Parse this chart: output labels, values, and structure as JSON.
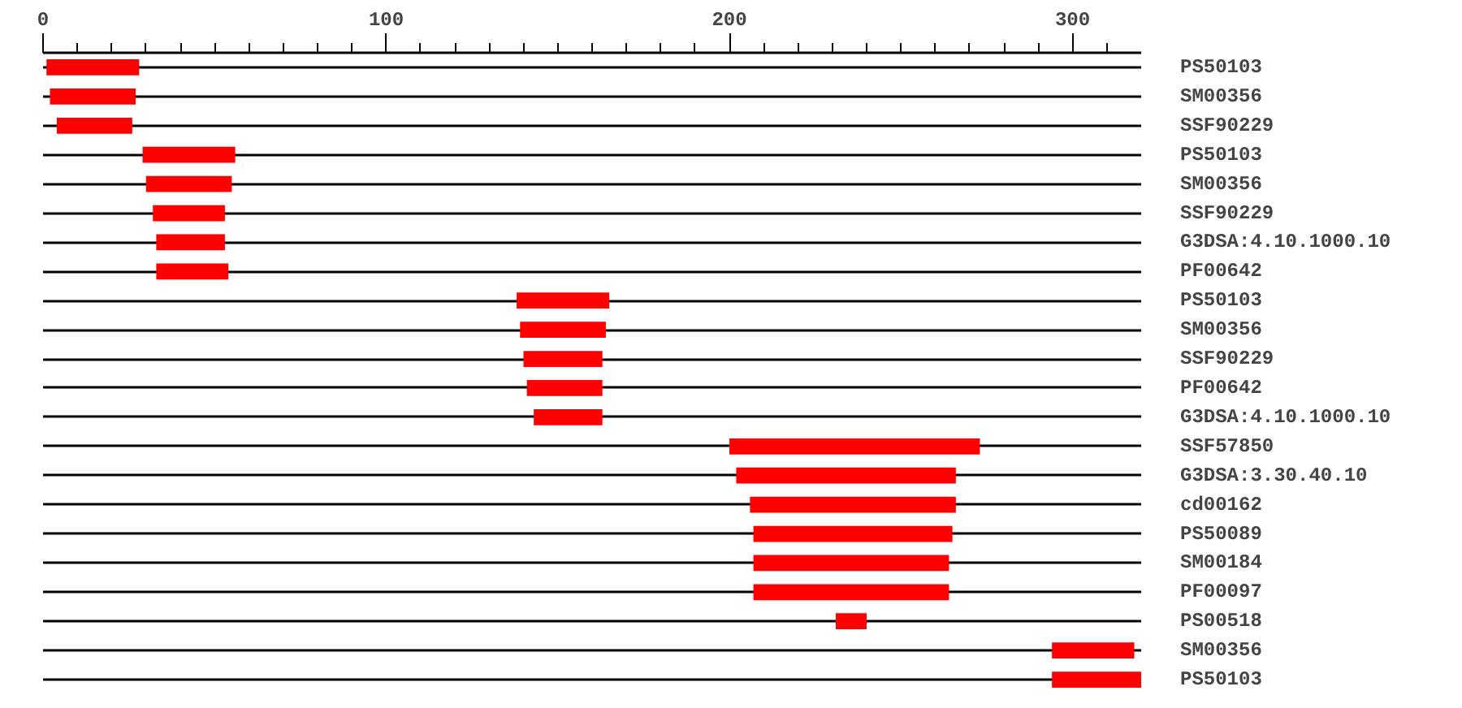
{
  "chart_data": {
    "type": "bar",
    "orientation": "horizontal",
    "grid": "y",
    "categories": [
      "PS50103",
      "SM00356",
      "SSF90229",
      "PS50103",
      "SM00356",
      "SSF90229",
      "G3DSA:4.10.1000.10",
      "PF00642",
      "PS50103",
      "SM00356",
      "SSF90229",
      "PF00642",
      "G3DSA:4.10.1000.10",
      "SSF57850",
      "G3DSA:3.30.40.10",
      "cd00162",
      "PS50089",
      "SM00184",
      "PF00097",
      "PS00518",
      "SM00356",
      "PS50103"
    ],
    "base": [
      1,
      2,
      4,
      29,
      30,
      32,
      33,
      33,
      138,
      139,
      140,
      141,
      143,
      200,
      202,
      206,
      207,
      207,
      207,
      231,
      294,
      294
    ],
    "values": [
      27,
      25,
      22,
      27,
      25,
      21,
      20,
      21,
      27,
      25,
      23,
      22,
      20,
      73,
      64,
      60,
      58,
      57,
      57,
      9,
      24,
      26
    ],
    "color": "#ff0000",
    "xlim": [
      0,
      320
    ],
    "xticks": [
      0,
      {
        "value": 10,
        "label": null
      },
      {
        "value": 20,
        "label": null
      },
      {
        "value": 30,
        "label": null
      },
      {
        "value": 40,
        "label": null
      },
      {
        "value": 50,
        "label": null
      },
      {
        "value": 60,
        "label": null
      },
      {
        "value": 70,
        "label": null
      },
      {
        "value": 80,
        "label": null
      },
      {
        "value": 90,
        "label": null
      },
      100,
      {
        "value": 110,
        "label": null
      },
      {
        "value": 120,
        "label": null
      },
      {
        "value": 130,
        "label": null
      },
      {
        "value": 140,
        "label": null
      },
      {
        "value": 150,
        "label": null
      },
      {
        "value": 160,
        "label": null
      },
      {
        "value": 170,
        "label": null
      },
      {
        "value": 180,
        "label": null
      },
      {
        "value": 190,
        "label": null
      },
      200,
      {
        "value": 210,
        "label": null
      },
      {
        "value": 220,
        "label": null
      },
      {
        "value": 230,
        "label": null
      },
      {
        "value": 240,
        "label": null
      },
      {
        "value": 250,
        "label": null
      },
      {
        "value": 260,
        "label": null
      },
      {
        "value": 270,
        "label": null
      },
      {
        "value": 280,
        "label": null
      },
      {
        "value": 290,
        "label": null
      },
      300,
      {
        "value": 310,
        "label": null
      }
    ]
  }
}
